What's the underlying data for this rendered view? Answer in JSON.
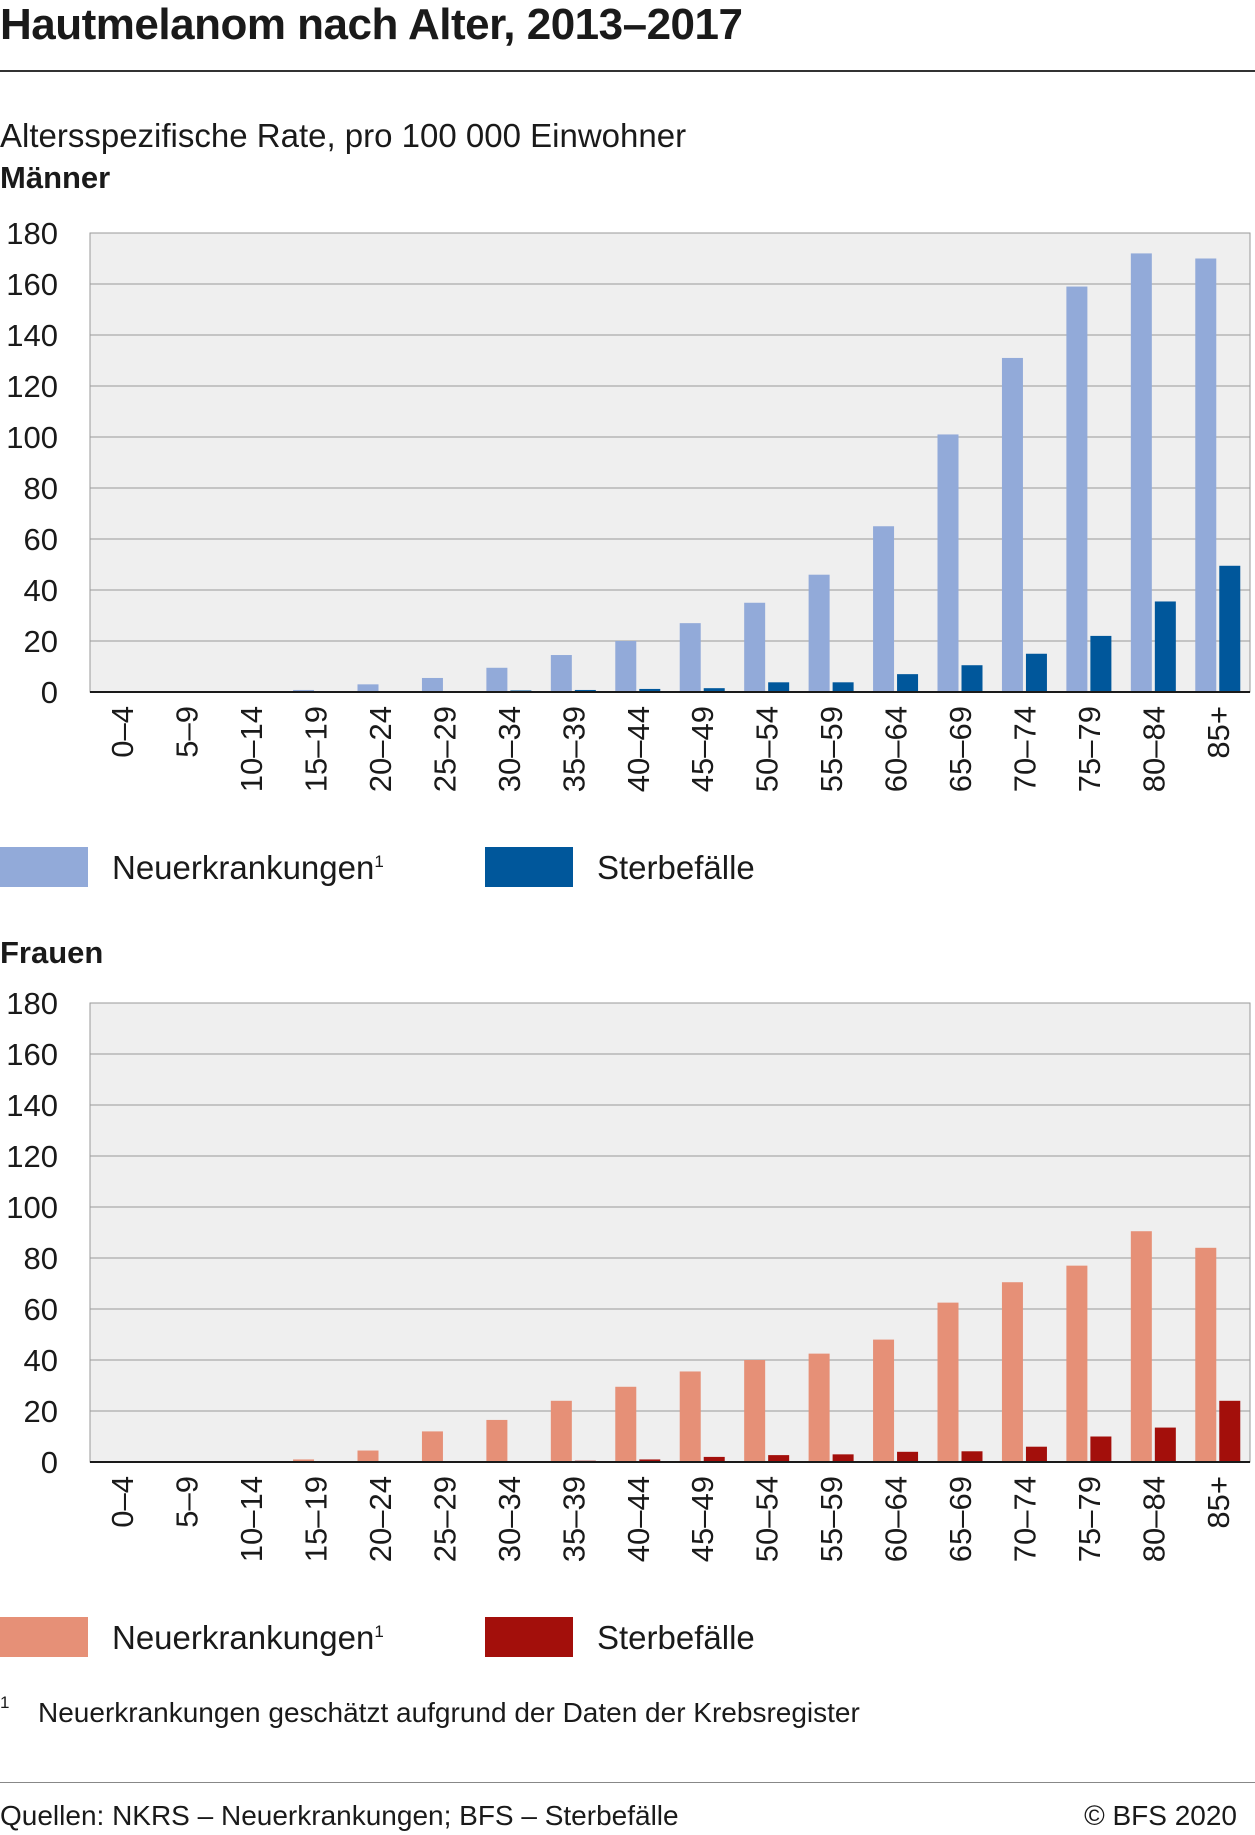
{
  "title": "Hautmelanom nach Alter, 2013–2017",
  "subtitle": "Altersspezifische Rate, pro 100 000 Einwohner",
  "footnote": {
    "marker": "1",
    "text": "Neuerkrankungen geschätzt aufgrund der Daten der Krebsregister"
  },
  "source": "Quellen: NKRS – Neuerkrankungen; BFS – Sterbefälle",
  "copyright": "© BFS 2020",
  "panels": [
    {
      "label": "Männer",
      "legend": [
        {
          "label": "Neuerkrankungen",
          "sup": "1"
        },
        {
          "label": "Sterbefälle",
          "sup": ""
        }
      ]
    },
    {
      "label": "Frauen",
      "legend": [
        {
          "label": "Neuerkrankungen",
          "sup": "1"
        },
        {
          "label": "Sterbefälle",
          "sup": ""
        }
      ]
    }
  ],
  "chart_data": [
    {
      "type": "bar",
      "title": "Männer",
      "ylabel": "Altersspezifische Rate, pro 100 000 Einwohner",
      "categories": [
        "0–4",
        "5–9",
        "10–14",
        "15–19",
        "20–24",
        "25–29",
        "30–34",
        "35–39",
        "40–44",
        "45–49",
        "50–54",
        "55–59",
        "60–64",
        "65–69",
        "70–74",
        "75–79",
        "80–84",
        "85+"
      ],
      "series": [
        {
          "name": "Neuerkrankungen",
          "color": "#92aad9",
          "values": [
            0,
            0,
            0.3,
            0.8,
            3,
            5.5,
            9.5,
            14.5,
            20,
            27,
            35,
            46,
            65,
            101,
            131,
            159,
            172,
            170
          ]
        },
        {
          "name": "Sterbefälle",
          "color": "#00579b",
          "values": [
            0,
            0,
            0,
            0,
            0.2,
            0.3,
            0.6,
            0.8,
            1.2,
            1.5,
            3.8,
            3.8,
            7,
            10.5,
            15,
            22,
            35.5,
            49.5
          ]
        }
      ],
      "ylim": [
        0,
        180
      ],
      "yticks": [
        0,
        20,
        40,
        60,
        80,
        100,
        120,
        140,
        160,
        180
      ],
      "grid": true,
      "legend": "bottom"
    },
    {
      "type": "bar",
      "title": "Frauen",
      "ylabel": "Altersspezifische Rate, pro 100 000 Einwohner",
      "categories": [
        "0–4",
        "5–9",
        "10–14",
        "15–19",
        "20–24",
        "25–29",
        "30–34",
        "35–39",
        "40–44",
        "45–49",
        "50–54",
        "55–59",
        "60–64",
        "65–69",
        "70–74",
        "75–79",
        "80–84",
        "85+"
      ],
      "series": [
        {
          "name": "Neuerkrankungen",
          "color": "#e69077",
          "values": [
            0,
            0,
            0.3,
            1,
            4.5,
            12,
            16.5,
            24,
            29.5,
            35.5,
            40,
            42.5,
            48,
            62.5,
            70.5,
            77,
            90.5,
            84
          ]
        },
        {
          "name": "Sterbefälle",
          "color": "#a30f0b",
          "values": [
            0,
            0,
            0,
            0,
            0,
            0.2,
            0.3,
            0.5,
            1,
            2,
            2.7,
            3,
            4,
            4.2,
            6,
            10,
            13.5,
            24
          ]
        }
      ],
      "ylim": [
        0,
        180
      ],
      "yticks": [
        0,
        20,
        40,
        60,
        80,
        100,
        120,
        140,
        160,
        180
      ],
      "grid": true,
      "legend": "bottom"
    }
  ]
}
